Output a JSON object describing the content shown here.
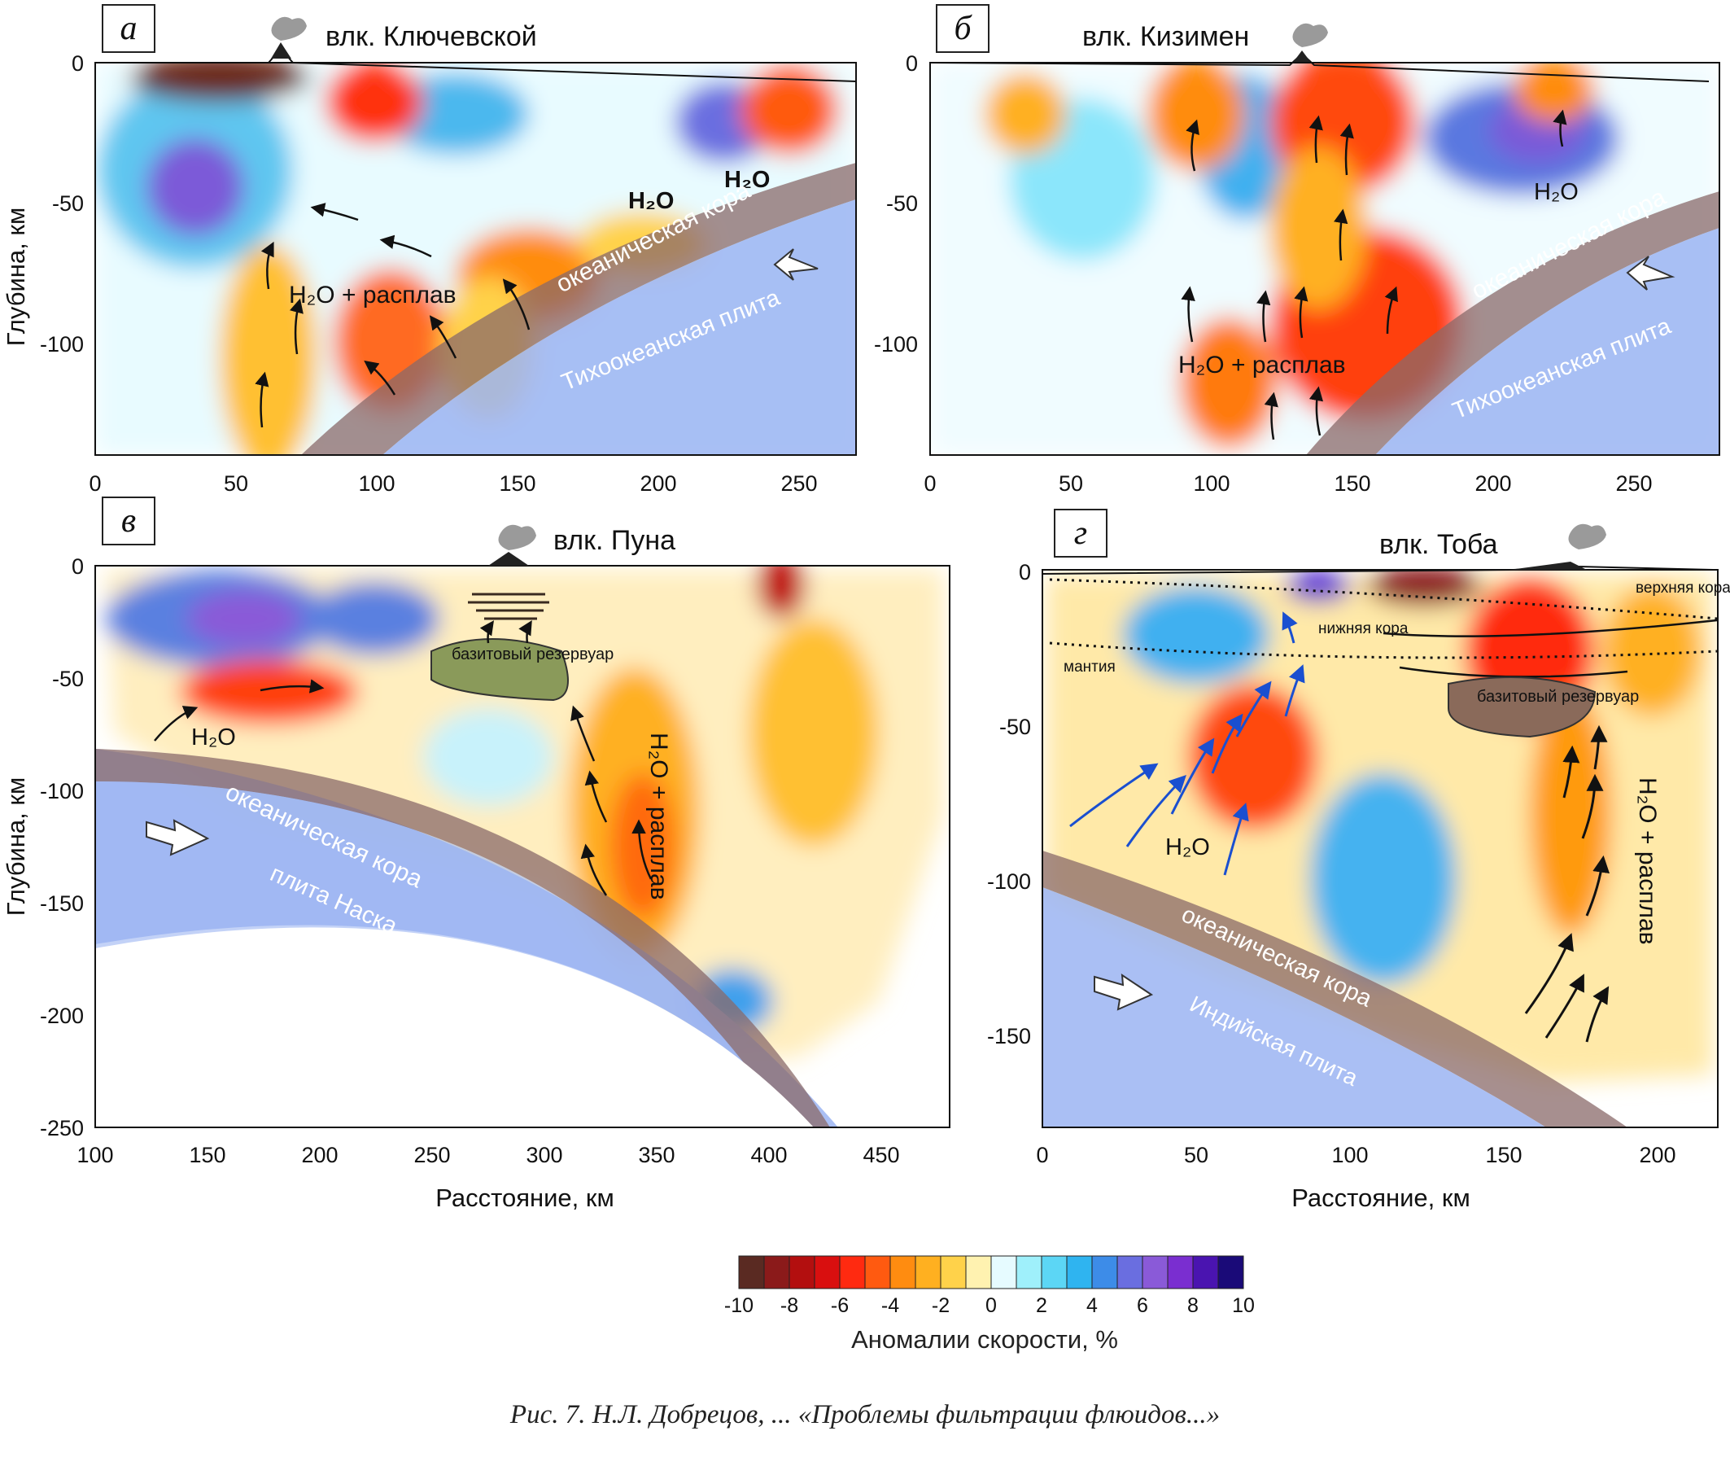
{
  "panels": [
    {
      "tag": "а",
      "volcano": "влк. Ключевской",
      "x_ticks": [
        "0",
        "50",
        "100",
        "150",
        "200",
        "250"
      ],
      "y_ticks": [
        "0",
        "-50",
        "-100"
      ],
      "labels": {
        "h2o_1": "H₂O",
        "h2o_2": "H₂O",
        "melt": "H₂O + расплав",
        "crust": "океаническая кора",
        "plate": "Тихоокеанская плита"
      }
    },
    {
      "tag": "б",
      "volcano": "влк. Кизимен",
      "x_ticks": [
        "0",
        "50",
        "100",
        "150",
        "200",
        "250"
      ],
      "y_ticks": [
        "0",
        "-50",
        "-100"
      ],
      "labels": {
        "h2o_1": "H₂O",
        "melt": "H₂O + расплав",
        "crust": "океаническая кора",
        "plate": "Тихоокеанская плита"
      }
    },
    {
      "tag": "в",
      "volcano": "влк. Пуна",
      "x_ticks": [
        "100",
        "150",
        "200",
        "250",
        "300",
        "350",
        "400",
        "450"
      ],
      "y_ticks": [
        "0",
        "-50",
        "-100",
        "-150",
        "-200",
        "-250"
      ],
      "labels": {
        "h2o_1": "H₂O",
        "melt": "H₂O + расплав",
        "crust": "океаническая кора",
        "plate": "плита Наска",
        "reservoir": "базитовый резервуар"
      }
    },
    {
      "tag": "г",
      "volcano": "влк. Тоба",
      "x_ticks": [
        "0",
        "50",
        "100",
        "150",
        "200"
      ],
      "y_ticks": [
        "0",
        "-50",
        "-100",
        "-150"
      ],
      "labels": {
        "h2o_1": "H₂O",
        "melt": "H₂O + расплав",
        "crust": "океаническая кора",
        "plate": "Индийская плита",
        "reservoir": "базитовый резервуар",
        "upper_crust": "верхняя кора",
        "lower_crust": "нижняя кора",
        "mantle": "мантия"
      }
    }
  ],
  "y_axis_label": "Глубина, км",
  "x_axis_label": "Расстояние, км",
  "colorbar": {
    "ticks": [
      "-10",
      "-8",
      "-6",
      "-4",
      "-2",
      "0",
      "2",
      "4",
      "6",
      "8",
      "10"
    ],
    "colors": [
      "#5a2a22",
      "#8b1a1a",
      "#b30f0f",
      "#d90f0f",
      "#ff2a10",
      "#ff5a10",
      "#ff8c10",
      "#ffb020",
      "#ffd24a",
      "#fff2b0",
      "#e6fbff",
      "#9ff0fb",
      "#5cd6f5",
      "#2fb4f0",
      "#3d8ce8",
      "#6a6ee0",
      "#8a5ad8",
      "#7a2ed0",
      "#4a14b0",
      "#1a0a78"
    ],
    "title": "Аномалии скорости, %"
  },
  "caption": "Рис. 7. Н.Л. Добрецов, ... «Проблемы фильтрации флюидов...»"
}
